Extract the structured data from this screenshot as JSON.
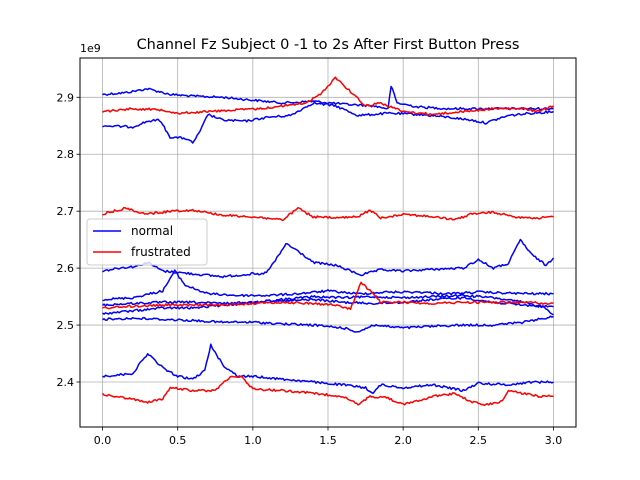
{
  "chart_data": {
    "type": "line",
    "title": "Channel Fz Subject 0 -1 to 2s After First Button Press",
    "xlabel": "",
    "ylabel": "",
    "offset_text": "1e9",
    "xlim": [
      -0.15,
      3.15
    ],
    "ylim": [
      2.321,
      2.969
    ],
    "x_ticks": [
      0.0,
      0.5,
      1.0,
      1.5,
      2.0,
      2.5,
      3.0
    ],
    "x_tick_labels": [
      "0.0",
      "0.5",
      "1.0",
      "1.5",
      "2.0",
      "2.5",
      "3.0"
    ],
    "y_ticks": [
      2.4,
      2.5,
      2.6,
      2.7,
      2.8,
      2.9
    ],
    "y_tick_labels": [
      "2.4",
      "2.5",
      "2.6",
      "2.7",
      "2.8",
      "2.9"
    ],
    "grid": true,
    "legend": {
      "position": "center-left",
      "entries": [
        {
          "label": "normal",
          "color": "#0000ff"
        },
        {
          "label": "frustrated",
          "color": "#ff0000"
        }
      ]
    },
    "colors": {
      "normal": "#0000ff",
      "frustrated": "#ff0000"
    },
    "series": [
      {
        "group": "normal",
        "points": [
          [
            0.0,
            2.905
          ],
          [
            0.15,
            2.908
          ],
          [
            0.3,
            2.915
          ],
          [
            0.45,
            2.905
          ],
          [
            0.6,
            2.902
          ],
          [
            0.8,
            2.9
          ],
          [
            1.0,
            2.895
          ],
          [
            1.2,
            2.89
          ],
          [
            1.4,
            2.893
          ],
          [
            1.6,
            2.888
          ],
          [
            1.8,
            2.885
          ],
          [
            1.9,
            2.88
          ],
          [
            1.92,
            2.92
          ],
          [
            1.96,
            2.89
          ],
          [
            2.1,
            2.883
          ],
          [
            2.3,
            2.88
          ],
          [
            2.5,
            2.88
          ],
          [
            2.7,
            2.88
          ],
          [
            2.9,
            2.88
          ],
          [
            3.0,
            2.88
          ]
        ]
      },
      {
        "group": "normal",
        "points": [
          [
            0.0,
            2.85
          ],
          [
            0.2,
            2.848
          ],
          [
            0.3,
            2.858
          ],
          [
            0.38,
            2.86
          ],
          [
            0.45,
            2.83
          ],
          [
            0.55,
            2.828
          ],
          [
            0.6,
            2.82
          ],
          [
            0.65,
            2.84
          ],
          [
            0.7,
            2.87
          ],
          [
            0.8,
            2.86
          ],
          [
            0.95,
            2.858
          ],
          [
            1.1,
            2.865
          ],
          [
            1.25,
            2.868
          ],
          [
            1.4,
            2.89
          ],
          [
            1.55,
            2.885
          ],
          [
            1.7,
            2.868
          ],
          [
            1.9,
            2.872
          ],
          [
            2.1,
            2.87
          ],
          [
            2.3,
            2.865
          ],
          [
            2.45,
            2.86
          ],
          [
            2.55,
            2.855
          ],
          [
            2.7,
            2.868
          ],
          [
            2.85,
            2.872
          ],
          [
            3.0,
            2.875
          ]
        ]
      },
      {
        "group": "normal",
        "points": [
          [
            0.0,
            2.595
          ],
          [
            0.1,
            2.6
          ],
          [
            0.22,
            2.603
          ],
          [
            0.3,
            2.61
          ],
          [
            0.4,
            2.595
          ],
          [
            0.6,
            2.59
          ],
          [
            0.8,
            2.585
          ],
          [
            1.0,
            2.59
          ],
          [
            1.05,
            2.588
          ],
          [
            1.1,
            2.595
          ],
          [
            1.18,
            2.625
          ],
          [
            1.22,
            2.643
          ],
          [
            1.3,
            2.63
          ],
          [
            1.4,
            2.61
          ],
          [
            1.55,
            2.605
          ],
          [
            1.65,
            2.595
          ],
          [
            1.72,
            2.588
          ],
          [
            1.85,
            2.597
          ],
          [
            2.0,
            2.595
          ],
          [
            2.2,
            2.598
          ],
          [
            2.4,
            2.6
          ],
          [
            2.5,
            2.615
          ],
          [
            2.6,
            2.6
          ],
          [
            2.7,
            2.608
          ],
          [
            2.78,
            2.65
          ],
          [
            2.85,
            2.625
          ],
          [
            2.95,
            2.605
          ],
          [
            3.0,
            2.618
          ]
        ]
      },
      {
        "group": "normal",
        "points": [
          [
            0.0,
            2.545
          ],
          [
            0.2,
            2.548
          ],
          [
            0.4,
            2.56
          ],
          [
            0.48,
            2.595
          ],
          [
            0.55,
            2.57
          ],
          [
            0.7,
            2.555
          ],
          [
            0.9,
            2.552
          ],
          [
            1.1,
            2.552
          ],
          [
            1.3,
            2.555
          ],
          [
            1.5,
            2.56
          ],
          [
            1.7,
            2.555
          ],
          [
            1.9,
            2.558
          ],
          [
            2.1,
            2.558
          ],
          [
            2.3,
            2.555
          ],
          [
            2.5,
            2.558
          ],
          [
            2.7,
            2.556
          ],
          [
            2.9,
            2.555
          ],
          [
            3.0,
            2.555
          ]
        ]
      },
      {
        "group": "normal",
        "points": [
          [
            0.0,
            2.535
          ],
          [
            0.2,
            2.538
          ],
          [
            0.4,
            2.54
          ],
          [
            0.6,
            2.54
          ],
          [
            0.8,
            2.538
          ],
          [
            1.0,
            2.54
          ],
          [
            1.2,
            2.542
          ],
          [
            1.4,
            2.545
          ],
          [
            1.6,
            2.54
          ],
          [
            1.8,
            2.538
          ],
          [
            2.0,
            2.54
          ],
          [
            2.2,
            2.545
          ],
          [
            2.4,
            2.548
          ],
          [
            2.6,
            2.54
          ],
          [
            2.8,
            2.535
          ],
          [
            3.0,
            2.532
          ]
        ]
      },
      {
        "group": "normal",
        "points": [
          [
            0.0,
            2.52
          ],
          [
            0.2,
            2.525
          ],
          [
            0.4,
            2.53
          ],
          [
            0.6,
            2.53
          ],
          [
            0.8,
            2.535
          ],
          [
            1.0,
            2.54
          ],
          [
            1.2,
            2.545
          ],
          [
            1.4,
            2.55
          ],
          [
            1.6,
            2.548
          ],
          [
            1.8,
            2.55
          ],
          [
            2.0,
            2.548
          ],
          [
            2.2,
            2.55
          ],
          [
            2.4,
            2.552
          ],
          [
            2.6,
            2.548
          ],
          [
            2.8,
            2.54
          ],
          [
            2.95,
            2.53
          ],
          [
            3.0,
            2.518
          ]
        ]
      },
      {
        "group": "normal",
        "points": [
          [
            0.0,
            2.51
          ],
          [
            0.2,
            2.512
          ],
          [
            0.4,
            2.51
          ],
          [
            0.6,
            2.508
          ],
          [
            0.8,
            2.505
          ],
          [
            1.0,
            2.505
          ],
          [
            1.2,
            2.502
          ],
          [
            1.4,
            2.5
          ],
          [
            1.6,
            2.495
          ],
          [
            1.7,
            2.488
          ],
          [
            1.8,
            2.5
          ],
          [
            2.0,
            2.495
          ],
          [
            2.2,
            2.498
          ],
          [
            2.4,
            2.5
          ],
          [
            2.6,
            2.5
          ],
          [
            2.8,
            2.505
          ],
          [
            2.9,
            2.51
          ],
          [
            3.0,
            2.515
          ]
        ]
      },
      {
        "group": "normal",
        "points": [
          [
            0.0,
            2.41
          ],
          [
            0.2,
            2.415
          ],
          [
            0.3,
            2.45
          ],
          [
            0.4,
            2.425
          ],
          [
            0.5,
            2.41
          ],
          [
            0.6,
            2.405
          ],
          [
            0.68,
            2.42
          ],
          [
            0.72,
            2.465
          ],
          [
            0.8,
            2.43
          ],
          [
            0.9,
            2.41
          ],
          [
            1.0,
            2.41
          ],
          [
            1.2,
            2.405
          ],
          [
            1.4,
            2.4
          ],
          [
            1.6,
            2.395
          ],
          [
            1.75,
            2.39
          ],
          [
            1.8,
            2.38
          ],
          [
            1.85,
            2.395
          ],
          [
            2.0,
            2.39
          ],
          [
            2.2,
            2.395
          ],
          [
            2.4,
            2.385
          ],
          [
            2.5,
            2.398
          ],
          [
            2.7,
            2.395
          ],
          [
            2.85,
            2.4
          ],
          [
            3.0,
            2.4
          ]
        ]
      },
      {
        "group": "frustrated",
        "points": [
          [
            0.0,
            2.875
          ],
          [
            0.2,
            2.88
          ],
          [
            0.4,
            2.878
          ],
          [
            0.5,
            2.872
          ],
          [
            0.7,
            2.875
          ],
          [
            0.9,
            2.878
          ],
          [
            1.05,
            2.88
          ],
          [
            1.2,
            2.885
          ],
          [
            1.35,
            2.89
          ],
          [
            1.45,
            2.905
          ],
          [
            1.55,
            2.935
          ],
          [
            1.65,
            2.91
          ],
          [
            1.75,
            2.885
          ],
          [
            1.85,
            2.89
          ],
          [
            2.0,
            2.875
          ],
          [
            2.2,
            2.87
          ],
          [
            2.4,
            2.875
          ],
          [
            2.6,
            2.88
          ],
          [
            2.8,
            2.88
          ],
          [
            2.9,
            2.875
          ],
          [
            3.0,
            2.885
          ]
        ]
      },
      {
        "group": "frustrated",
        "points": [
          [
            0.0,
            2.695
          ],
          [
            0.15,
            2.705
          ],
          [
            0.3,
            2.695
          ],
          [
            0.45,
            2.7
          ],
          [
            0.6,
            2.702
          ],
          [
            0.8,
            2.693
          ],
          [
            1.0,
            2.69
          ],
          [
            1.2,
            2.685
          ],
          [
            1.3,
            2.705
          ],
          [
            1.4,
            2.69
          ],
          [
            1.55,
            2.688
          ],
          [
            1.7,
            2.69
          ],
          [
            1.78,
            2.702
          ],
          [
            1.85,
            2.688
          ],
          [
            2.0,
            2.695
          ],
          [
            2.2,
            2.69
          ],
          [
            2.35,
            2.685
          ],
          [
            2.45,
            2.695
          ],
          [
            2.6,
            2.698
          ],
          [
            2.75,
            2.69
          ],
          [
            2.9,
            2.688
          ],
          [
            3.0,
            2.69
          ]
        ]
      },
      {
        "group": "frustrated",
        "points": [
          [
            0.0,
            2.53
          ],
          [
            0.2,
            2.533
          ],
          [
            0.4,
            2.535
          ],
          [
            0.6,
            2.535
          ],
          [
            0.8,
            2.535
          ],
          [
            1.0,
            2.538
          ],
          [
            1.2,
            2.54
          ],
          [
            1.4,
            2.538
          ],
          [
            1.55,
            2.535
          ],
          [
            1.65,
            2.528
          ],
          [
            1.72,
            2.575
          ],
          [
            1.78,
            2.56
          ],
          [
            1.85,
            2.54
          ],
          [
            2.0,
            2.54
          ],
          [
            2.2,
            2.538
          ],
          [
            2.4,
            2.54
          ],
          [
            2.6,
            2.54
          ],
          [
            2.8,
            2.54
          ],
          [
            3.0,
            2.538
          ]
        ]
      },
      {
        "group": "frustrated",
        "points": [
          [
            0.0,
            2.378
          ],
          [
            0.15,
            2.372
          ],
          [
            0.3,
            2.365
          ],
          [
            0.4,
            2.37
          ],
          [
            0.45,
            2.39
          ],
          [
            0.6,
            2.385
          ],
          [
            0.75,
            2.385
          ],
          [
            0.85,
            2.41
          ],
          [
            0.92,
            2.41
          ],
          [
            1.0,
            2.388
          ],
          [
            1.2,
            2.385
          ],
          [
            1.4,
            2.38
          ],
          [
            1.6,
            2.375
          ],
          [
            1.7,
            2.36
          ],
          [
            1.78,
            2.375
          ],
          [
            1.9,
            2.372
          ],
          [
            2.0,
            2.36
          ],
          [
            2.2,
            2.375
          ],
          [
            2.35,
            2.38
          ],
          [
            2.45,
            2.365
          ],
          [
            2.55,
            2.36
          ],
          [
            2.65,
            2.365
          ],
          [
            2.7,
            2.385
          ],
          [
            2.8,
            2.38
          ],
          [
            2.9,
            2.375
          ],
          [
            3.0,
            2.375
          ]
        ]
      }
    ]
  }
}
